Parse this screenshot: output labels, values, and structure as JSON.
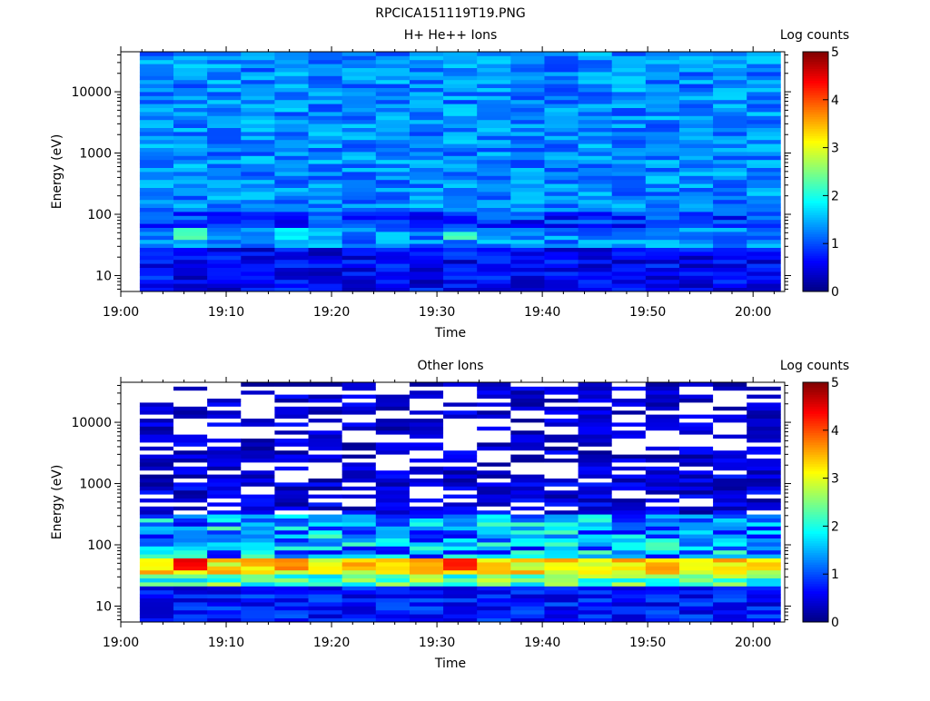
{
  "figure_title": "RPCICA151119T19.PNG",
  "chart_data": [
    {
      "type": "heatmap",
      "title": "H+ He++ Ions",
      "xlabel": "Time",
      "ylabel": "Energy (eV)",
      "x_tick_labels": [
        "19:00",
        "19:10",
        "19:20",
        "19:30",
        "19:40",
        "19:50",
        "20:00"
      ],
      "y_tick_labels": [
        "10",
        "100",
        "1000",
        "10000"
      ],
      "y_scale": "log",
      "ylim": [
        5.5,
        45000
      ],
      "xlim": [
        "19:00",
        "20:03"
      ],
      "colorbar_label": "Log counts",
      "colorbar_tick_labels": [
        "0",
        "1",
        "2",
        "3",
        "4",
        "5"
      ],
      "color_range": [
        0,
        5
      ],
      "colormap": "rainbow (dark blue to dark red)",
      "time_bins_start": [
        "19:01.8",
        "19:05",
        "19:08.2",
        "19:11.4",
        "19:14.6",
        "19:17.8",
        "19:21",
        "19:24.2",
        "19:27.4",
        "19:30.6",
        "19:33.8",
        "19:37",
        "19:40.2",
        "19:43.4",
        "19:46.6",
        "19:49.8",
        "19:53",
        "19:56.2",
        "19:59.4"
      ],
      "energy_band_logcounts_summary": {
        "5-30 eV": 0.5,
        "30-40 eV": 1.0,
        "40-65 eV": 1.5,
        "65-100 eV": 0.9,
        "100-45000 eV": 1.2
      },
      "peaks": [
        {
          "time": "19:06",
          "energy_eV": 50,
          "log_counts": 2.3
        },
        {
          "time": "19:16",
          "energy_eV": 50,
          "log_counts": 1.9
        },
        {
          "time": "19:32",
          "energy_eV": 45,
          "log_counts": 2.3
        }
      ]
    },
    {
      "type": "heatmap",
      "title": "Other Ions",
      "xlabel": "Time",
      "ylabel": "Energy (eV)",
      "x_tick_labels": [
        "19:00",
        "19:10",
        "19:20",
        "19:30",
        "19:40",
        "19:50",
        "20:00"
      ],
      "y_tick_labels": [
        "10",
        "100",
        "1000",
        "10000"
      ],
      "y_scale": "log",
      "ylim": [
        5.5,
        45000
      ],
      "xlim": [
        "19:00",
        "20:03"
      ],
      "colorbar_label": "Log counts",
      "colorbar_tick_labels": [
        "0",
        "1",
        "2",
        "3",
        "4",
        "5"
      ],
      "color_range": [
        0,
        5
      ],
      "colormap": "rainbow (dark blue to dark red)",
      "time_bins_start": [
        "19:01.8",
        "19:05",
        "19:08.2",
        "19:11.4",
        "19:14.6",
        "19:17.8",
        "19:21",
        "19:24.2",
        "19:27.4",
        "19:30.6",
        "19:33.8",
        "19:37",
        "19:40.2",
        "19:43.4",
        "19:46.6",
        "19:49.8",
        "19:53",
        "19:56.2",
        "19:59.4"
      ],
      "energy_band_logcounts_summary": {
        "5-20 eV": 0.7,
        "20-35 eV": 1.8,
        "35-65 eV": 3.2,
        "65-300 eV": 1.2,
        "300-45000 eV": 0.3
      },
      "peaks": [
        {
          "time": "19:06",
          "energy_eV": 50,
          "log_counts": 4.5
        },
        {
          "time": "19:16",
          "energy_eV": 50,
          "log_counts": 3.8
        },
        {
          "time": "19:29",
          "energy_eV": 40,
          "log_counts": 3.6
        },
        {
          "time": "19:32",
          "energy_eV": 50,
          "log_counts": 4.3
        },
        {
          "time": "19:03",
          "energy_eV": 45,
          "log_counts": 3.2
        },
        {
          "time": "19:19",
          "energy_eV": 40,
          "log_counts": 3.2
        }
      ]
    }
  ]
}
